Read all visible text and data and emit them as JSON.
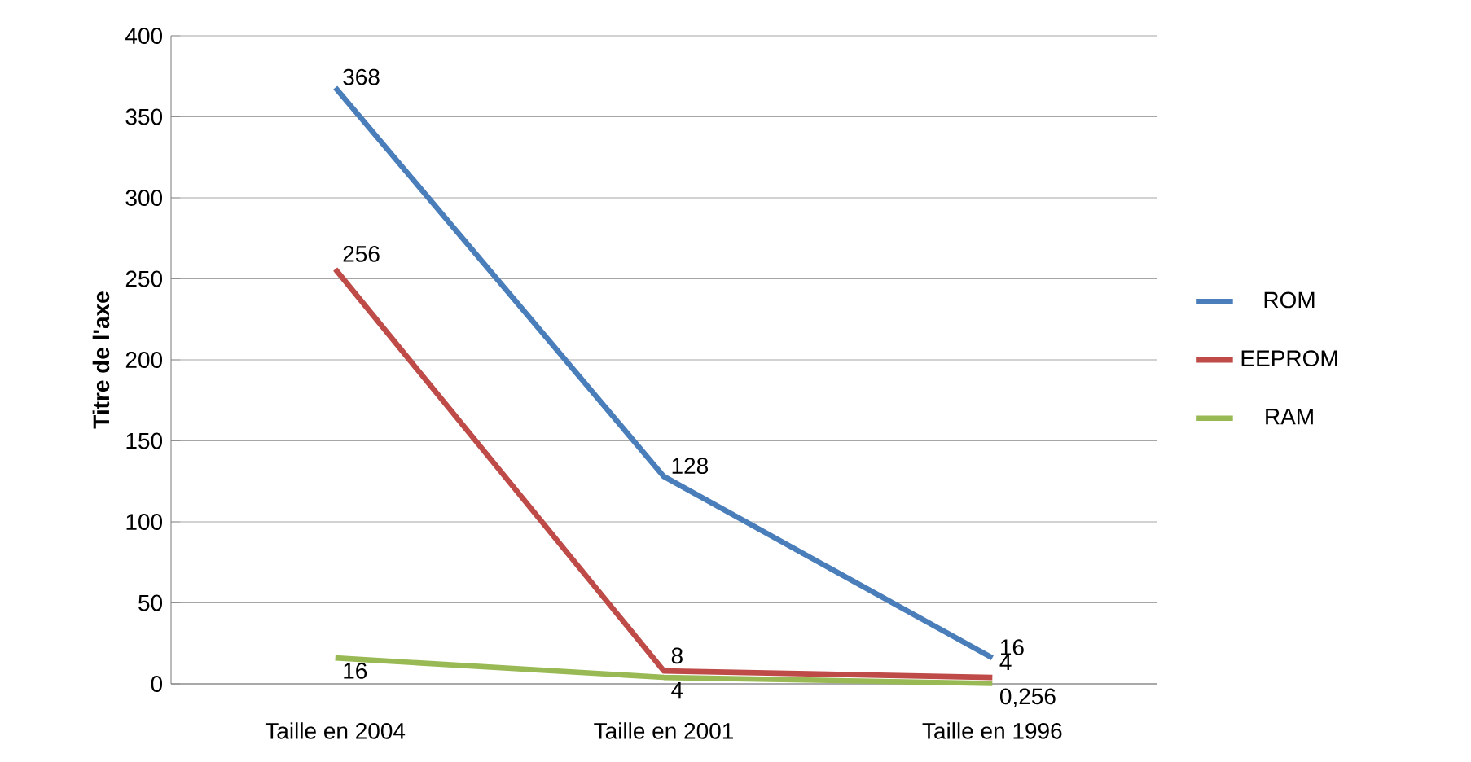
{
  "chart_data": {
    "type": "line",
    "ylabel": "Titre de l'axe",
    "categories": [
      "Taille en 2004",
      "Taille en 2001",
      "Taille en 1996"
    ],
    "series": [
      {
        "name": "ROM",
        "color": "#4a7ebb",
        "values": [
          368,
          128,
          16
        ],
        "value_labels": [
          "368",
          "128",
          "16"
        ]
      },
      {
        "name": "EEPROM",
        "color": "#be4b48",
        "values": [
          256,
          8,
          4
        ],
        "value_labels": [
          "256",
          "8",
          "4"
        ]
      },
      {
        "name": "RAM",
        "color": "#98b954",
        "values": [
          16,
          4,
          0.256
        ],
        "value_labels": [
          "16",
          "4",
          "0,256"
        ]
      }
    ],
    "ylim": [
      0,
      400
    ],
    "yticks": [
      0,
      50,
      100,
      150,
      200,
      250,
      300,
      350,
      400
    ],
    "grid": "y",
    "legend": "right",
    "marker": "none",
    "line_style": "solid"
  }
}
